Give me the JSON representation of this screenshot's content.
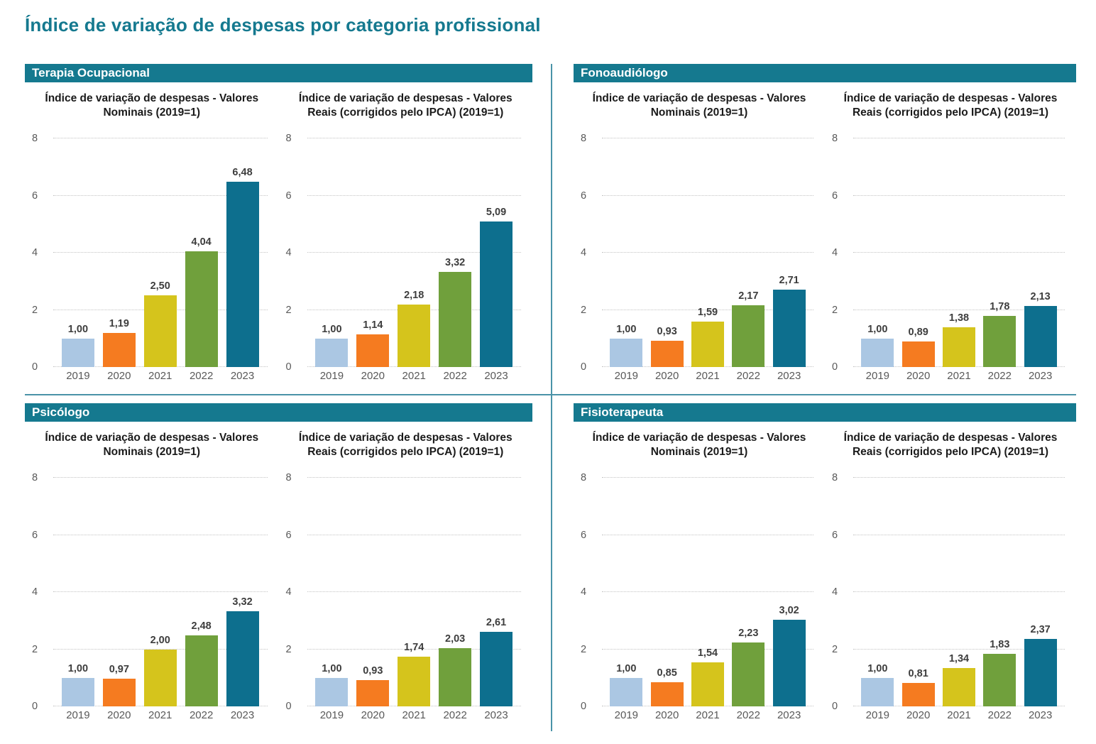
{
  "page_title": "Índice de variação de despesas por categoria profissional",
  "colors": {
    "accent_teal": "#15798F",
    "divider": "#4a93a8",
    "bar_years": [
      "#ABC7E3",
      "#F57B20",
      "#D5C41C",
      "#70A03C",
      "#0D6F8E"
    ],
    "gridline": "#c3c3c3",
    "value_label": "#3d3d3d",
    "axis_label": "#595959"
  },
  "panels": [
    {
      "title": "Terapia Ocupacional",
      "charts": [
        0,
        1
      ]
    },
    {
      "title": "Fonoaudiólogo",
      "charts": [
        2,
        3
      ]
    },
    {
      "title": "Psicólogo",
      "charts": [
        4,
        5
      ]
    },
    {
      "title": "Fisioterapeuta",
      "charts": [
        6,
        7
      ]
    }
  ],
  "chart_data": [
    {
      "panel": "Terapia Ocupacional",
      "type": "bar",
      "title": "Índice de variação de despesas - Valores Nominais (2019=1)",
      "title_lines": [
        "Índice de variação de despesas - Valores",
        "Nominais (2019=1)"
      ],
      "categories": [
        "2019",
        "2020",
        "2021",
        "2022",
        "2023"
      ],
      "values": [
        1.0,
        1.19,
        2.5,
        4.04,
        6.48
      ],
      "value_labels": [
        "1,00",
        "1,19",
        "2,50",
        "4,04",
        "6,48"
      ],
      "ylim": [
        0,
        8
      ],
      "yticks": [
        0,
        2,
        4,
        6,
        8
      ],
      "grid": "dotted",
      "legend": "none"
    },
    {
      "panel": "Terapia Ocupacional",
      "type": "bar",
      "title": "Índice de variação de despesas - Valores Reais (corrigidos pelo IPCA) (2019=1)",
      "title_lines": [
        "Índice de variação de despesas - Valores",
        "Reais (corrigidos pelo IPCA) (2019=1)"
      ],
      "categories": [
        "2019",
        "2020",
        "2021",
        "2022",
        "2023"
      ],
      "values": [
        1.0,
        1.14,
        2.18,
        3.32,
        5.09
      ],
      "value_labels": [
        "1,00",
        "1,14",
        "2,18",
        "3,32",
        "5,09"
      ],
      "ylim": [
        0,
        8
      ],
      "yticks": [
        0,
        2,
        4,
        6,
        8
      ],
      "grid": "dotted",
      "legend": "none"
    },
    {
      "panel": "Fonoaudiólogo",
      "type": "bar",
      "title": "Índice de variação de despesas - Valores Nominais (2019=1)",
      "title_lines": [
        "Índice de variação de despesas - Valores",
        "Nominais (2019=1)"
      ],
      "categories": [
        "2019",
        "2020",
        "2021",
        "2022",
        "2023"
      ],
      "values": [
        1.0,
        0.93,
        1.59,
        2.17,
        2.71
      ],
      "value_labels": [
        "1,00",
        "0,93",
        "1,59",
        "2,17",
        "2,71"
      ],
      "ylim": [
        0,
        8
      ],
      "yticks": [
        0,
        2,
        4,
        6,
        8
      ],
      "grid": "dotted",
      "legend": "none"
    },
    {
      "panel": "Fonoaudiólogo",
      "type": "bar",
      "title": "Índice de variação de despesas - Valores Reais (corrigidos pelo IPCA) (2019=1)",
      "title_lines": [
        "Índice de variação de despesas - Valores",
        "Reais (corrigidos pelo IPCA) (2019=1)"
      ],
      "categories": [
        "2019",
        "2020",
        "2021",
        "2022",
        "2023"
      ],
      "values": [
        1.0,
        0.89,
        1.38,
        1.78,
        2.13
      ],
      "value_labels": [
        "1,00",
        "0,89",
        "1,38",
        "1,78",
        "2,13"
      ],
      "ylim": [
        0,
        8
      ],
      "yticks": [
        0,
        2,
        4,
        6,
        8
      ],
      "grid": "dotted",
      "legend": "none"
    },
    {
      "panel": "Psicólogo",
      "type": "bar",
      "title": "Índice de variação de despesas - Valores Nominais (2019=1)",
      "title_lines": [
        "Índice de variação de despesas - Valores",
        "Nominais (2019=1)"
      ],
      "categories": [
        "2019",
        "2020",
        "2021",
        "2022",
        "2023"
      ],
      "values": [
        1.0,
        0.97,
        2.0,
        2.48,
        3.32
      ],
      "value_labels": [
        "1,00",
        "0,97",
        "2,00",
        "2,48",
        "3,32"
      ],
      "ylim": [
        0,
        8
      ],
      "yticks": [
        0,
        2,
        4,
        6,
        8
      ],
      "grid": "dotted",
      "legend": "none"
    },
    {
      "panel": "Psicólogo",
      "type": "bar",
      "title": "Índice de variação de despesas - Valores Reais (corrigidos pelo IPCA) (2019=1)",
      "title_lines": [
        "Índice de variação de despesas - Valores",
        "Reais (corrigidos pelo IPCA) (2019=1)"
      ],
      "categories": [
        "2019",
        "2020",
        "2021",
        "2022",
        "2023"
      ],
      "values": [
        1.0,
        0.93,
        1.74,
        2.03,
        2.61
      ],
      "value_labels": [
        "1,00",
        "0,93",
        "1,74",
        "2,03",
        "2,61"
      ],
      "ylim": [
        0,
        8
      ],
      "yticks": [
        0,
        2,
        4,
        6,
        8
      ],
      "grid": "dotted",
      "legend": "none"
    },
    {
      "panel": "Fisioterapeuta",
      "type": "bar",
      "title": "Índice de variação de despesas - Valores Nominais (2019=1)",
      "title_lines": [
        "Índice de variação de despesas - Valores",
        "Nominais (2019=1)"
      ],
      "categories": [
        "2019",
        "2020",
        "2021",
        "2022",
        "2023"
      ],
      "values": [
        1.0,
        0.85,
        1.54,
        2.23,
        3.02
      ],
      "value_labels": [
        "1,00",
        "0,85",
        "1,54",
        "2,23",
        "3,02"
      ],
      "ylim": [
        0,
        8
      ],
      "yticks": [
        0,
        2,
        4,
        6,
        8
      ],
      "grid": "dotted",
      "legend": "none"
    },
    {
      "panel": "Fisioterapeuta",
      "type": "bar",
      "title": "Índice de variação de despesas - Valores Reais (corrigidos pelo IPCA) (2019=1)",
      "title_lines": [
        "Índice de variação de despesas - Valores",
        "Reais (corrigidos pelo IPCA) (2019=1)"
      ],
      "categories": [
        "2019",
        "2020",
        "2021",
        "2022",
        "2023"
      ],
      "values": [
        1.0,
        0.81,
        1.34,
        1.83,
        2.37
      ],
      "value_labels": [
        "1,00",
        "0,81",
        "1,34",
        "1,83",
        "2,37"
      ],
      "ylim": [
        0,
        8
      ],
      "yticks": [
        0,
        2,
        4,
        6,
        8
      ],
      "grid": "dotted",
      "legend": "none"
    }
  ]
}
